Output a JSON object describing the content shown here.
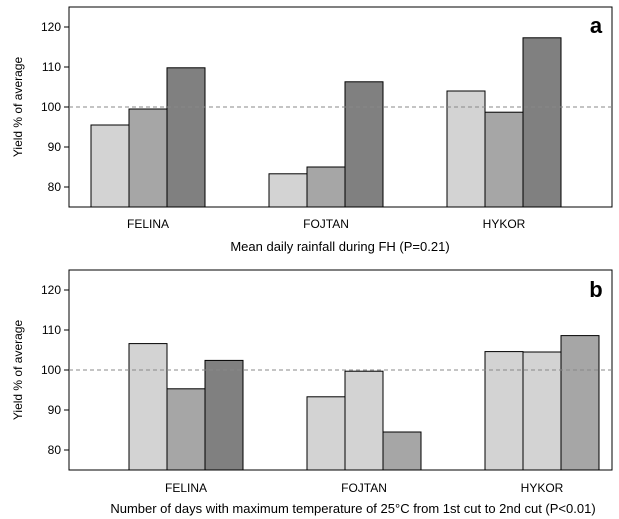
{
  "chart_data": [
    {
      "type": "bar",
      "panel_label": "a",
      "categories": [
        "FELINA",
        "FOJTAN",
        "HYKOR"
      ],
      "series": [
        {
          "values": [
            95.5,
            83.3,
            104
          ]
        },
        {
          "values": [
            99.5,
            85,
            98.7
          ]
        },
        {
          "values": [
            109.8,
            106.3,
            117.3
          ]
        }
      ],
      "colors": [
        "#d3d3d3",
        "#a6a6a6",
        "#808080"
      ],
      "xlabel": "Mean daily rainfall during FH  (P=0.21)",
      "ylabel": "Yield % of average",
      "ylim": [
        75,
        125
      ],
      "yticks": [
        80,
        90,
        100,
        110,
        120
      ],
      "reference_line": 100
    },
    {
      "type": "bar",
      "panel_label": "b",
      "categories": [
        "FELINA",
        "FOJTAN",
        "HYKOR"
      ],
      "series": [
        {
          "values": [
            null,
            93.3,
            104.6
          ]
        },
        {
          "values": [
            106.6,
            99.7,
            104.5
          ]
        },
        {
          "values": [
            95.3,
            84.5,
            108.6
          ]
        },
        {
          "values": [
            102.4,
            null,
            null
          ]
        }
      ],
      "colors": [
        "#d3d3d3",
        "#d3d3d3",
        "#a6a6a6",
        "#808080"
      ],
      "xlabel": "Number of days with maximum temperature of 25°C from 1st cut to 2nd cut  (P<0.01)",
      "ylabel": "Yield % of average",
      "ylim": [
        75,
        125
      ],
      "yticks": [
        80,
        90,
        100,
        110,
        120
      ],
      "reference_line": 100
    }
  ]
}
